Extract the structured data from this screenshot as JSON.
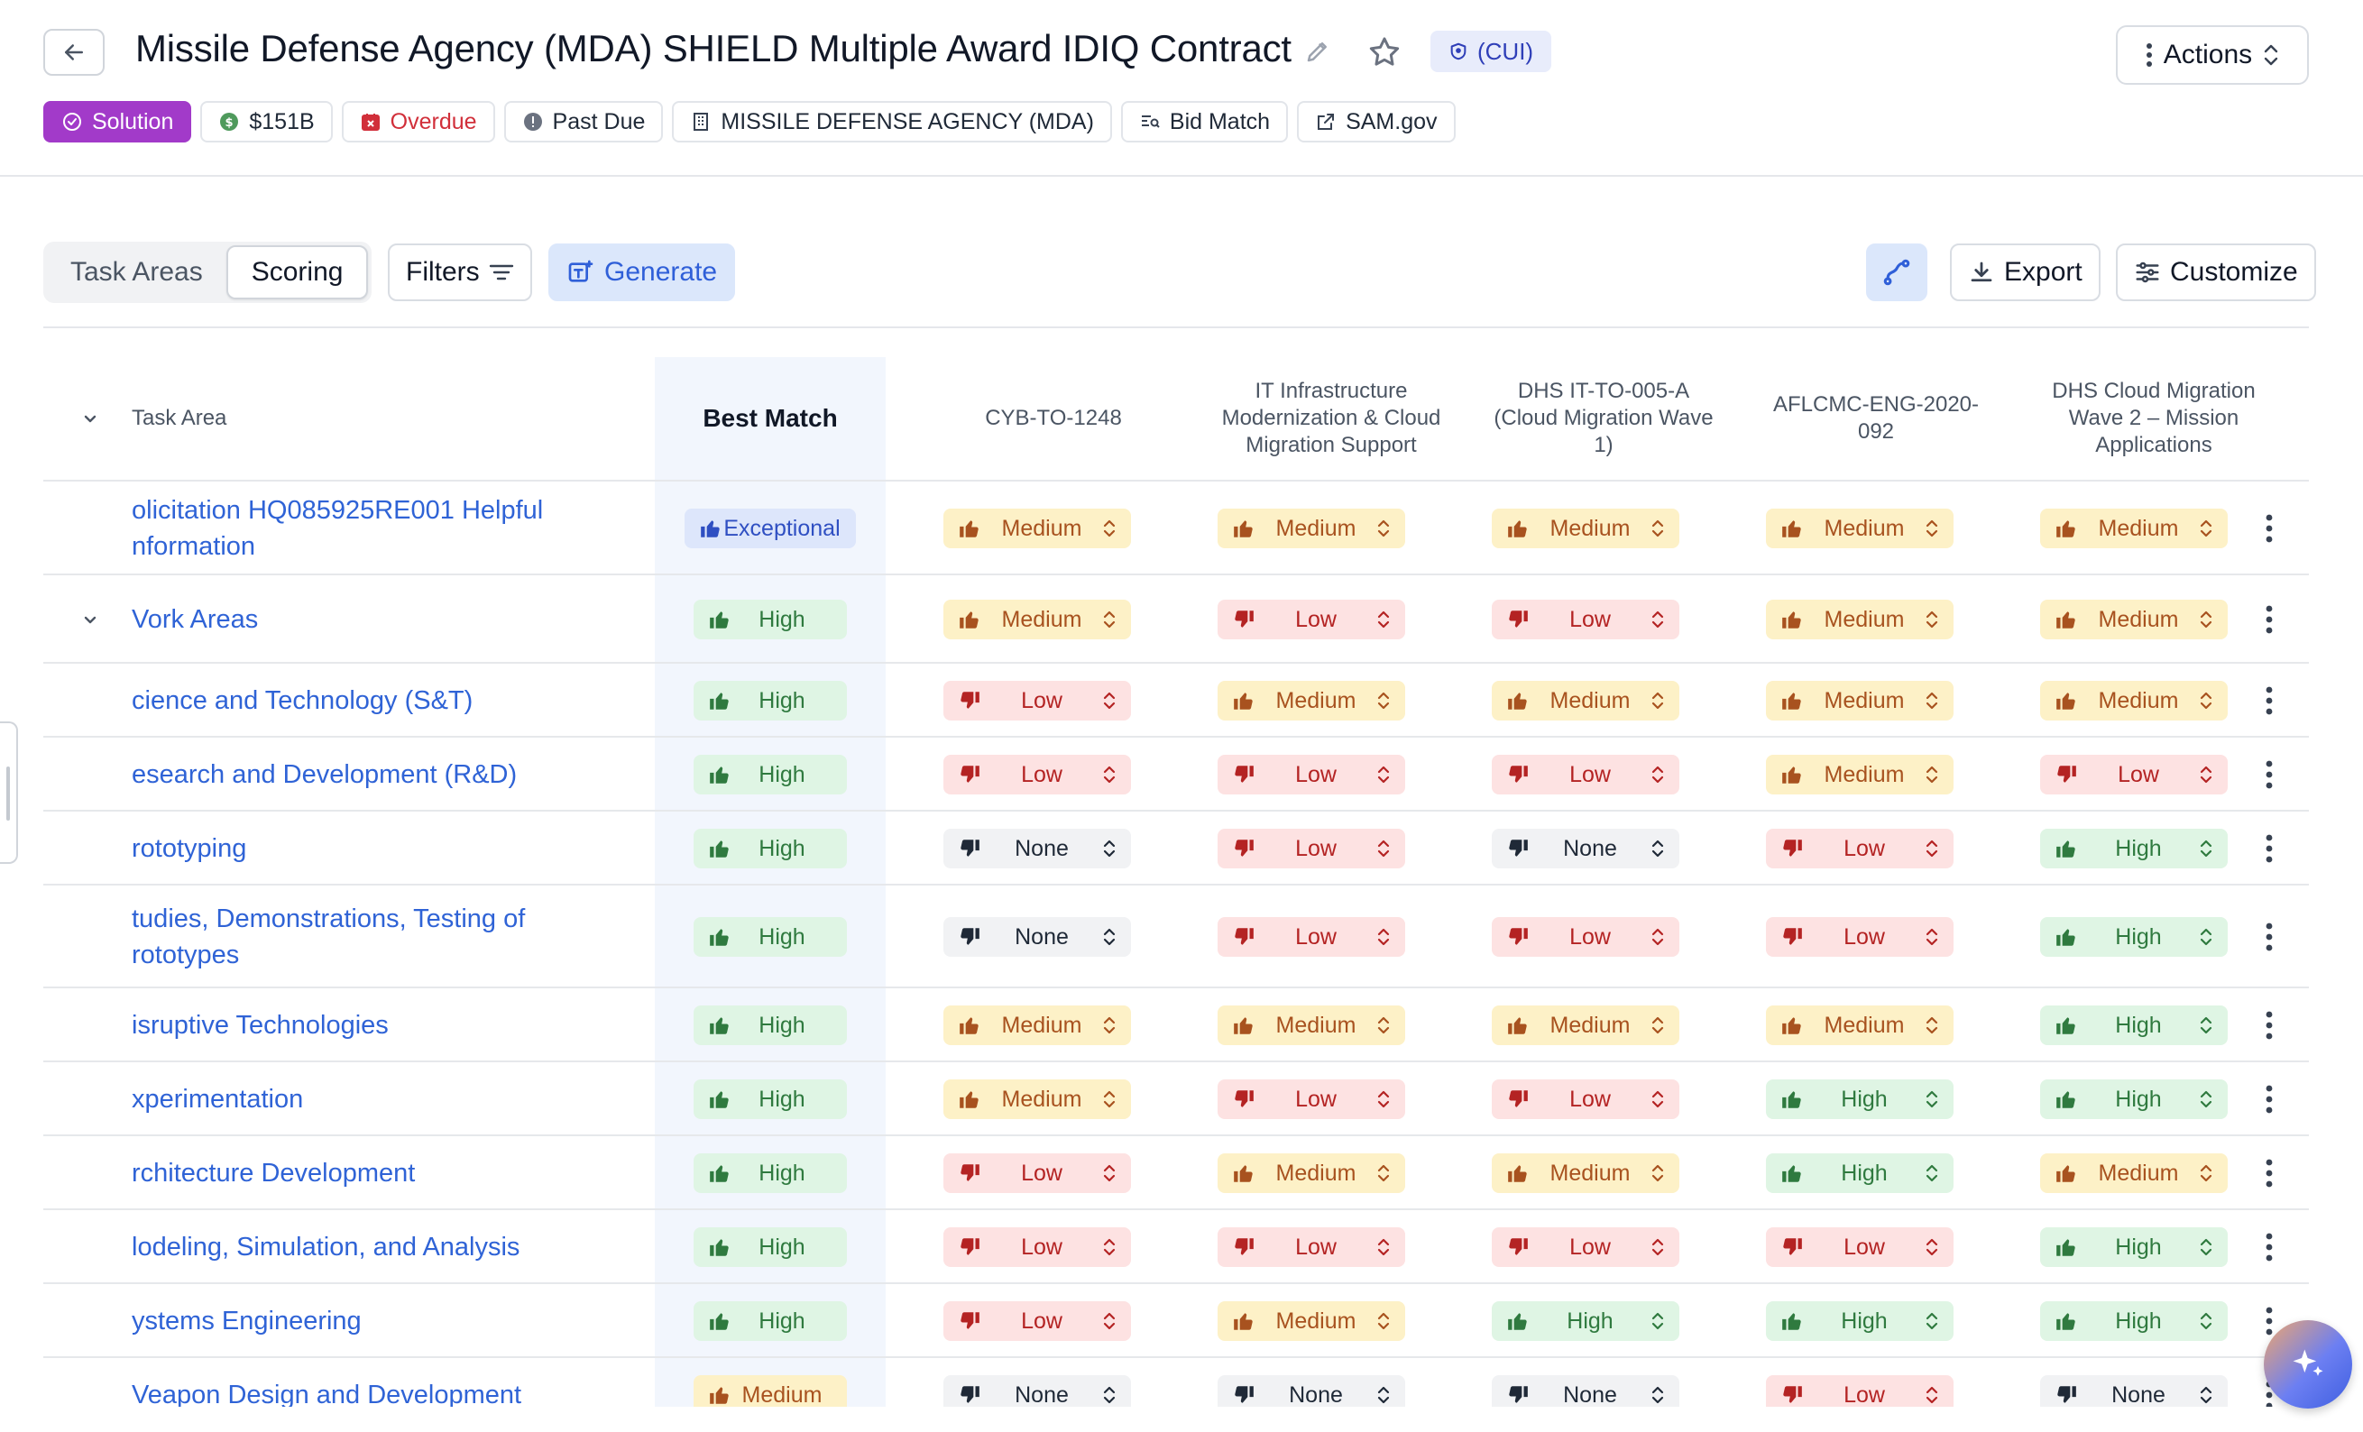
{
  "header": {
    "title": "Missile Defense Agency (MDA) SHIELD Multiple Award IDIQ Contract",
    "cui_label": "(CUI)",
    "actions_label": "Actions"
  },
  "tags": [
    {
      "key": "solution",
      "label": "Solution",
      "icon": "check-circle-icon"
    },
    {
      "key": "value",
      "label": "$151B",
      "icon": "dollar-circle-icon"
    },
    {
      "key": "overdue",
      "label": "Overdue",
      "icon": "calendar-x-icon"
    },
    {
      "key": "pastdue",
      "label": "Past Due",
      "icon": "alert-circle-icon"
    },
    {
      "key": "agency",
      "label": "MISSILE DEFENSE AGENCY (MDA)",
      "icon": "building-icon"
    },
    {
      "key": "bidmatch",
      "label": "Bid Match",
      "icon": "bid-match-icon"
    },
    {
      "key": "samgov",
      "label": "SAM.gov",
      "icon": "external-link-icon"
    }
  ],
  "toolbar": {
    "tabs": [
      {
        "label": "Task Areas",
        "active": false
      },
      {
        "label": "Scoring",
        "active": true
      }
    ],
    "filters_label": "Filters",
    "generate_label": "Generate",
    "export_label": "Export",
    "customize_label": "Customize"
  },
  "table": {
    "task_header": "Task Area",
    "best_header": "Best Match",
    "columns": [
      "CYB-TO-1248",
      "IT Infrastructure Modernization & Cloud Migration Support",
      "DHS IT-TO-005-A (Cloud Migration Wave 1)",
      "AFLCMC-ENG-2020-092",
      "DHS Cloud Migration Wave 2 – Mission Applications"
    ],
    "rows": [
      {
        "task": "olicitation HQ085925RE001 Helpful nformation",
        "best": "Exceptional",
        "scores": [
          "Medium",
          "Medium",
          "Medium",
          "Medium",
          "Medium"
        ],
        "caret": false
      },
      {
        "task": "Vork Areas",
        "best": "High",
        "scores": [
          "Medium",
          "Low",
          "Low",
          "Medium",
          "Medium"
        ],
        "caret": true
      },
      {
        "task": "cience and Technology (S&T)",
        "best": "High",
        "scores": [
          "Low",
          "Medium",
          "Medium",
          "Medium",
          "Medium"
        ],
        "caret": false
      },
      {
        "task": "esearch and Development (R&D)",
        "best": "High",
        "scores": [
          "Low",
          "Low",
          "Low",
          "Medium",
          "Low"
        ],
        "caret": false
      },
      {
        "task": "rototyping",
        "best": "High",
        "scores": [
          "None",
          "Low",
          "None",
          "Low",
          "High"
        ],
        "caret": false
      },
      {
        "task": "tudies, Demonstrations, Testing of rototypes",
        "best": "High",
        "scores": [
          "None",
          "Low",
          "Low",
          "Low",
          "High"
        ],
        "caret": false
      },
      {
        "task": "isruptive Technologies",
        "best": "High",
        "scores": [
          "Medium",
          "Medium",
          "Medium",
          "Medium",
          "High"
        ],
        "caret": false
      },
      {
        "task": "xperimentation",
        "best": "High",
        "scores": [
          "Medium",
          "Low",
          "Low",
          "High",
          "High"
        ],
        "caret": false
      },
      {
        "task": "rchitecture Development",
        "best": "High",
        "scores": [
          "Low",
          "Medium",
          "Medium",
          "High",
          "Medium"
        ],
        "caret": false
      },
      {
        "task": "lodeling, Simulation, and Analysis",
        "best": "High",
        "scores": [
          "Low",
          "Low",
          "Low",
          "Low",
          "High"
        ],
        "caret": false
      },
      {
        "task": "ystems Engineering",
        "best": "High",
        "scores": [
          "Low",
          "Medium",
          "High",
          "High",
          "High"
        ],
        "caret": false
      },
      {
        "task": "Veapon Design and Development",
        "best": "Medium",
        "scores": [
          "None",
          "None",
          "None",
          "Low",
          "None"
        ],
        "caret": false
      }
    ]
  },
  "colors": {
    "accent": "#2f63d6",
    "solution": "#a23ac9",
    "medium_bg": "#fdf1c7",
    "low_bg": "#fde2e2",
    "high_bg": "#dff5e4",
    "none_bg": "#f1f2f4"
  }
}
